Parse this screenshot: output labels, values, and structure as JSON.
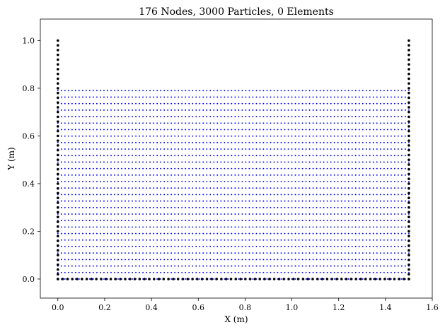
{
  "chart_data": {
    "type": "scatter",
    "title": "176 Nodes, 3000 Particles, 0 Elements",
    "xlabel": "X (m)",
    "ylabel": "Y (m)",
    "xlim": [
      -0.075,
      1.6
    ],
    "ylim": [
      -0.08,
      1.09
    ],
    "xticks": [
      0.0,
      0.2,
      0.4,
      0.6,
      0.8,
      1.0,
      1.2,
      1.4,
      1.6
    ],
    "xtick_labels": [
      "0.0",
      "0.2",
      "0.4",
      "0.6",
      "0.8",
      "1.0",
      "1.2",
      "1.4",
      "1.6"
    ],
    "yticks": [
      0.0,
      0.2,
      0.4,
      0.6,
      0.8,
      1.0
    ],
    "ytick_labels": [
      "0.0",
      "0.2",
      "0.4",
      "0.6",
      "0.8",
      "1.0"
    ],
    "grid": false,
    "legend": "none",
    "series": [
      {
        "role": "particles",
        "color": "#0000ff",
        "count": 3000,
        "grid": {
          "x_start": 0.0,
          "x_end": 1.5,
          "x_count": 100,
          "y_start": 0.0,
          "y_end": 0.79,
          "y_count": 30
        }
      },
      {
        "role": "nodes",
        "color": "#000000",
        "count": 176,
        "segments": [
          {
            "x": [
              0.0,
              0.0
            ],
            "y": [
              0.0,
              1.0
            ],
            "count": 51
          },
          {
            "x": [
              1.5,
              1.5
            ],
            "y": [
              0.0,
              1.0
            ],
            "count": 51
          },
          {
            "x": [
              0.0,
              1.5
            ],
            "y": [
              0.0,
              0.0
            ],
            "count": 74
          }
        ]
      }
    ]
  }
}
